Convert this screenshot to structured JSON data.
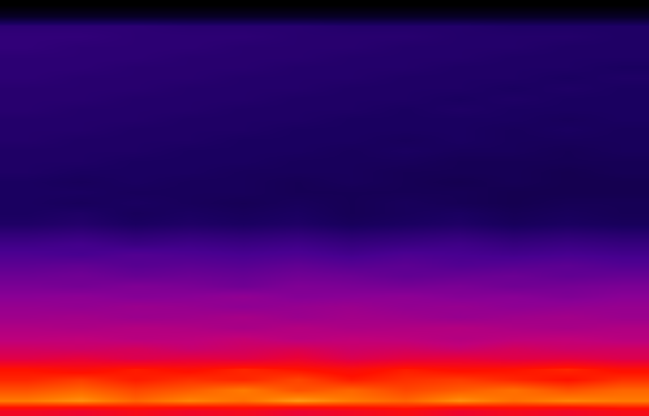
{
  "chart_data": {
    "type": "heatmap",
    "tick_labels": false,
    "zlim": [
      0,
      100
    ],
    "cells": [
      [
        72,
        70,
        74,
        71,
        73,
        69,
        72,
        75,
        70,
        73,
        71,
        74
      ],
      [
        88,
        90,
        86,
        89,
        87,
        91,
        88,
        86,
        90,
        87,
        89,
        88
      ],
      [
        84,
        86,
        83,
        85,
        88,
        84,
        86,
        83,
        85,
        87,
        84,
        86
      ],
      [
        80,
        82,
        79,
        81,
        80,
        83,
        79,
        81,
        82,
        80,
        78,
        81
      ],
      [
        78,
        76,
        79,
        77,
        80,
        78,
        76,
        79,
        77,
        78,
        80,
        77
      ],
      [
        66,
        68,
        65,
        67,
        66,
        69,
        65,
        67,
        68,
        66,
        67,
        65
      ],
      [
        62,
        61,
        63,
        60,
        62,
        64,
        61,
        62,
        60,
        63,
        61,
        62
      ],
      [
        57,
        58,
        56,
        57,
        59,
        56,
        58,
        57,
        55,
        57,
        58,
        56
      ],
      [
        54,
        53,
        55,
        54,
        52,
        55,
        53,
        54,
        55,
        53,
        52,
        54
      ],
      [
        50,
        51,
        49,
        50,
        52,
        49,
        51,
        50,
        48,
        50,
        51,
        49
      ],
      [
        48,
        47,
        49,
        48,
        46,
        48,
        49,
        47,
        48,
        46,
        47,
        48
      ],
      [
        45,
        46,
        44,
        45,
        47,
        44,
        45,
        46,
        44,
        45,
        43,
        45
      ],
      [
        42,
        41,
        43,
        42,
        40,
        43,
        42,
        41,
        42,
        40,
        41,
        42
      ],
      [
        39,
        40,
        38,
        39,
        38,
        40,
        39,
        37,
        38,
        39,
        37,
        38
      ],
      [
        36,
        37,
        35,
        36,
        35,
        37,
        35,
        36,
        34,
        35,
        36,
        34
      ],
      [
        33,
        32,
        34,
        33,
        32,
        33,
        31,
        33,
        32,
        31,
        32,
        31
      ],
      [
        30,
        31,
        29,
        30,
        29,
        30,
        28,
        29,
        30,
        28,
        29,
        28
      ],
      [
        27,
        28,
        26,
        27,
        26,
        27,
        25,
        26,
        27,
        25,
        26,
        25
      ],
      [
        23,
        24,
        22,
        23,
        22,
        23,
        21,
        22,
        23,
        21,
        22,
        21
      ],
      [
        22,
        23,
        21,
        22,
        21,
        22,
        20,
        21,
        22,
        20,
        21,
        20
      ],
      [
        22,
        21,
        22,
        21,
        20,
        21,
        20,
        21,
        20,
        19,
        20,
        20
      ],
      [
        22,
        22,
        21,
        21,
        21,
        20,
        20,
        20,
        20,
        19,
        19,
        19
      ],
      [
        22,
        21,
        22,
        21,
        21,
        20,
        21,
        20,
        19,
        20,
        19,
        19
      ],
      [
        23,
        22,
        22,
        22,
        21,
        21,
        21,
        20,
        20,
        20,
        19,
        20
      ],
      [
        23,
        23,
        22,
        22,
        22,
        21,
        21,
        21,
        20,
        20,
        20,
        20
      ],
      [
        23,
        23,
        23,
        22,
        22,
        22,
        21,
        22,
        21,
        21,
        20,
        21
      ],
      [
        24,
        23,
        23,
        23,
        22,
        22,
        22,
        21,
        22,
        21,
        21,
        21
      ],
      [
        24,
        24,
        23,
        23,
        23,
        22,
        22,
        22,
        22,
        21,
        22,
        21
      ],
      [
        24,
        24,
        24,
        23,
        23,
        23,
        22,
        22,
        22,
        22,
        21,
        22
      ],
      [
        25,
        24,
        24,
        24,
        23,
        23,
        23,
        22,
        23,
        22,
        22,
        22
      ],
      [
        25,
        25,
        24,
        24,
        24,
        23,
        23,
        23,
        22,
        23,
        22,
        22
      ],
      [
        25,
        25,
        25,
        24,
        24,
        24,
        23,
        23,
        23,
        22,
        23,
        22
      ],
      [
        26,
        25,
        25,
        25,
        24,
        24,
        24,
        23,
        23,
        23,
        22,
        23
      ],
      [
        26,
        26,
        25,
        25,
        25,
        24,
        24,
        24,
        23,
        23,
        23,
        22
      ],
      [
        26,
        26,
        26,
        25,
        25,
        25,
        24,
        24,
        24,
        23,
        23,
        23
      ],
      [
        27,
        26,
        26,
        26,
        25,
        25,
        25,
        24,
        24,
        24,
        23,
        23
      ],
      [
        27,
        27,
        26,
        26,
        26,
        25,
        25,
        25,
        24,
        24,
        24,
        23
      ],
      [
        26,
        26,
        26,
        25,
        25,
        25,
        24,
        24,
        24,
        23,
        23,
        23
      ],
      [
        10,
        10,
        10,
        10,
        10,
        10,
        10,
        10,
        10,
        10,
        10,
        10
      ],
      [
        0,
        0,
        0,
        0,
        0,
        0,
        0,
        0,
        0,
        0,
        0,
        0
      ]
    ]
  }
}
